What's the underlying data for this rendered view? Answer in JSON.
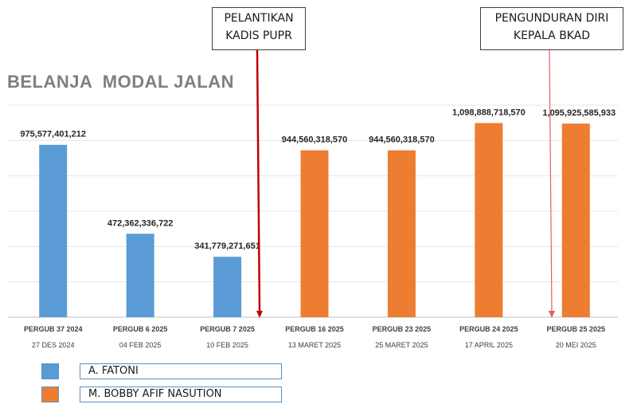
{
  "chart_data": {
    "type": "bar",
    "title": "BELANJA  MODAL JALAN",
    "categories": [
      "PERGUB 37 2024",
      "PERGUB 6 2025",
      "PERGUB 7 2025",
      "PERGUB 16 2025",
      "PERGUB 23 2025",
      "PERGUB 24 2025",
      "PERGUB 25 2025"
    ],
    "dates": [
      "27 DES 2024",
      "04 FEB 2025",
      "10 FEB 2025",
      "13 MARET 2025",
      "25 MARET 2025",
      "17 APRIL 2025",
      "20 MEI 2025"
    ],
    "values": [
      975577401212,
      472362336722,
      341779271651,
      944560318570,
      944560318570,
      1098888718570,
      1095925585933
    ],
    "value_labels": [
      "975,577,401,212",
      "472,362,336,722",
      "341,779,271,651",
      "944,560,318,570",
      "944,560,318,570",
      "1,098,888,718,570",
      "1,095,925,585,933"
    ],
    "bar_series": [
      0,
      0,
      0,
      1,
      1,
      1,
      1
    ],
    "series": [
      {
        "name": "A. FATONI",
        "color": "#5b9bd5"
      },
      {
        "name": "M. BOBBY AFIF NASUTION",
        "color": "#ed7d31"
      }
    ],
    "ylim": [
      0,
      1200000000000
    ],
    "grid": true,
    "legend_position": "bottom-left",
    "annotations": [
      {
        "lines": [
          "PELANTIKAN",
          "KADIS PUPR"
        ],
        "between_categories": [
          2,
          3
        ],
        "arrow_color": "#c00000"
      },
      {
        "lines": [
          "PENGUNDURAN DIRI",
          "KEPALA BKAD"
        ],
        "between_categories": [
          5,
          6
        ],
        "arrow_color": "#e06060"
      }
    ]
  }
}
